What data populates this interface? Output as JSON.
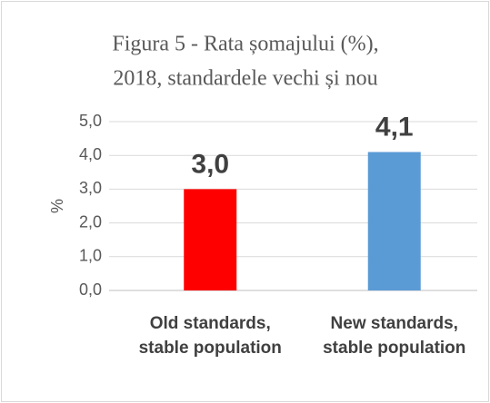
{
  "chart_data": {
    "type": "bar",
    "title": [
      "Figura 5 - Rata șomajului (%),",
      "2018, standardele vechi și nou"
    ],
    "y_label": "%",
    "categories": [
      "Old standards, stable population",
      "New standards, stable population"
    ],
    "values": [
      3.0,
      4.1
    ],
    "value_labels": [
      "3,0",
      "4,1"
    ],
    "colors": [
      "#ff0000",
      "#5b9bd5"
    ],
    "ylim": [
      0,
      5
    ],
    "yticks": [
      {
        "value": 0,
        "label": "0,0"
      },
      {
        "value": 1,
        "label": "1,0"
      },
      {
        "value": 2,
        "label": "2,0"
      },
      {
        "value": 3,
        "label": "3,0"
      },
      {
        "value": 4,
        "label": "4,0"
      },
      {
        "value": 5,
        "label": "5,0"
      }
    ],
    "grid": true
  }
}
